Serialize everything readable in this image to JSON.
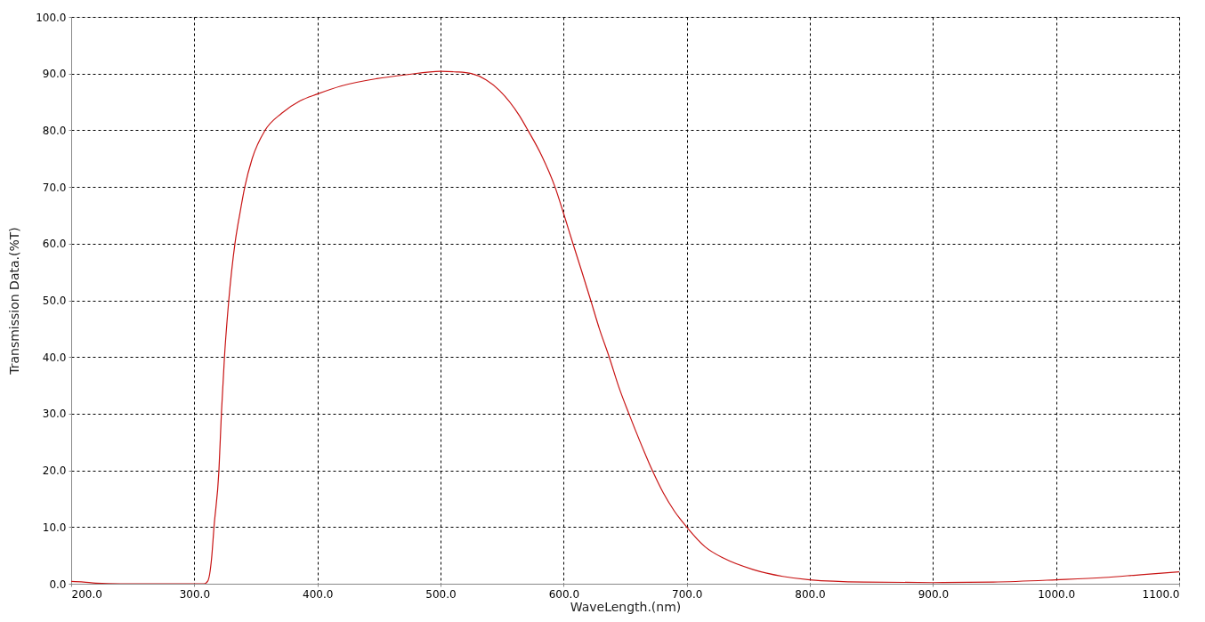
{
  "chart_data": {
    "type": "line",
    "xlabel": "WaveLength.(nm)",
    "ylabel": "Transmission Data.(%T)",
    "x": [
      200,
      210,
      220,
      240,
      280,
      308,
      311,
      314,
      316,
      320,
      322,
      324.5,
      328,
      333,
      337,
      341,
      347,
      357.5,
      371,
      386,
      400,
      419,
      448,
      472,
      500,
      513,
      525,
      537,
      548,
      564,
      571,
      582,
      593,
      600,
      607,
      615,
      622,
      629,
      637,
      645,
      653,
      662,
      672,
      681,
      690,
      700,
      715,
      730,
      754,
      778,
      800,
      844,
      900,
      949,
      1000,
      1039,
      1069,
      1100
    ],
    "series": [
      {
        "color": "#c81414",
        "values": [
          0.4,
          0.3,
          0.1,
          0.0,
          0.0,
          0.0,
          0.5,
          4.4,
          10,
          20,
          30,
          40,
          50,
          60,
          65.3,
          70,
          75,
          80,
          83,
          85.2,
          86.4,
          87.8,
          89.1,
          89.8,
          90.4,
          90.3,
          90.0,
          88.9,
          87.0,
          82.6,
          80,
          75.6,
          70,
          65.3,
          60.4,
          54.9,
          50,
          45.0,
          40,
          34.6,
          30,
          25.1,
          20,
          16.0,
          12.8,
          10,
          6.5,
          4.5,
          2.5,
          1.3,
          0.7,
          0.3,
          0.2,
          0.3,
          0.7,
          1.1,
          1.6,
          2.1
        ]
      }
    ],
    "xlim": [
      200,
      1100
    ],
    "ylim": [
      0,
      100
    ],
    "xticks": [
      {
        "value": 200,
        "label": "200.0"
      },
      {
        "value": 300,
        "label": "300.0"
      },
      {
        "value": 400,
        "label": "400.0"
      },
      {
        "value": 500,
        "label": "500.0"
      },
      {
        "value": 600,
        "label": "600.0"
      },
      {
        "value": 700,
        "label": "700.0"
      },
      {
        "value": 800,
        "label": "800.0"
      },
      {
        "value": 900,
        "label": "900.0"
      },
      {
        "value": 1000,
        "label": "1000.0"
      },
      {
        "value": 1100,
        "label": "1100.0"
      }
    ],
    "yticks": [
      {
        "value": 0,
        "label": "0.0"
      },
      {
        "value": 10,
        "label": "10.0"
      },
      {
        "value": 20,
        "label": "20.0"
      },
      {
        "value": 30,
        "label": "30.0"
      },
      {
        "value": 40,
        "label": "40.0"
      },
      {
        "value": 50,
        "label": "50.0"
      },
      {
        "value": 60,
        "label": "60.0"
      },
      {
        "value": 70,
        "label": "70.0"
      },
      {
        "value": 80,
        "label": "80.0"
      },
      {
        "value": 90,
        "label": "90.0"
      },
      {
        "value": 100,
        "label": "100.0"
      }
    ],
    "grid": true,
    "line_style": "solid"
  }
}
